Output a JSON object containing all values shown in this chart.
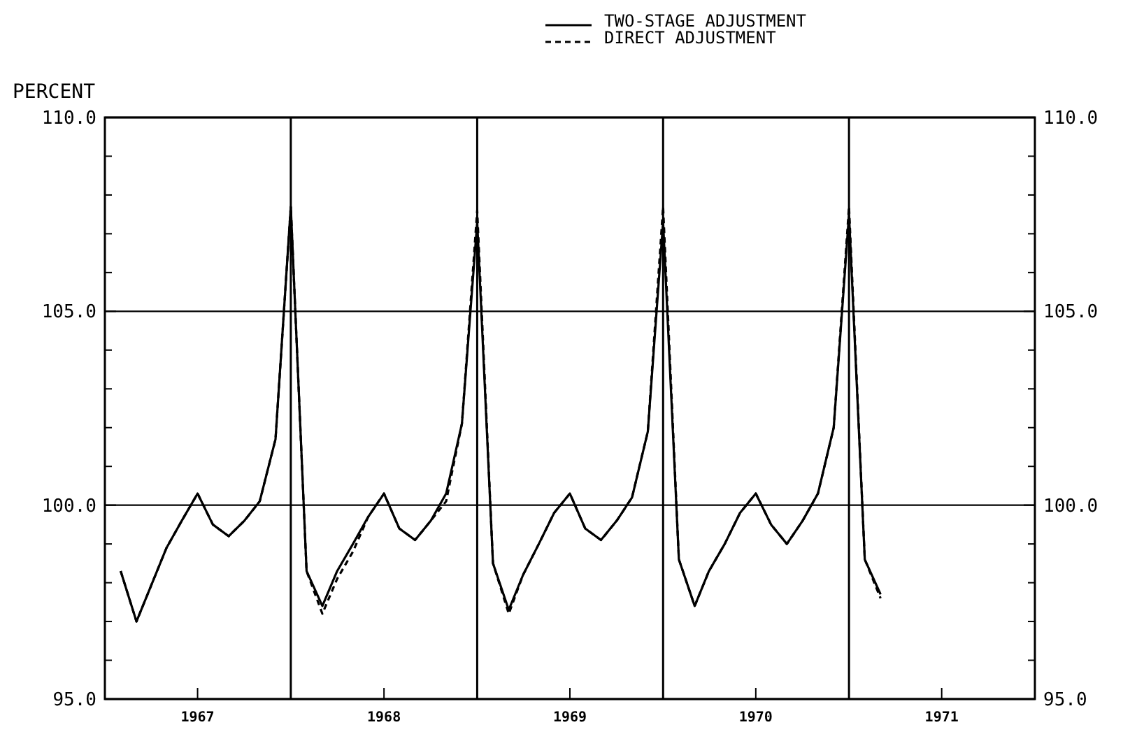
{
  "chart_data": {
    "type": "line",
    "ylabel": "PERCENT",
    "x": [
      "1967-01",
      "1967-02",
      "1967-03",
      "1967-04",
      "1967-05",
      "1967-06",
      "1967-07",
      "1967-08",
      "1967-09",
      "1967-10",
      "1967-11",
      "1967-12",
      "1968-01",
      "1968-02",
      "1968-03",
      "1968-04",
      "1968-05",
      "1968-06",
      "1968-07",
      "1968-08",
      "1968-09",
      "1968-10",
      "1968-11",
      "1968-12",
      "1969-01",
      "1969-02",
      "1969-03",
      "1969-04",
      "1969-05",
      "1969-06",
      "1969-07",
      "1969-08",
      "1969-09",
      "1969-10",
      "1969-11",
      "1969-12",
      "1970-01",
      "1970-02",
      "1970-03",
      "1970-04",
      "1970-05",
      "1970-06",
      "1970-07",
      "1970-08",
      "1970-09",
      "1970-10",
      "1970-11",
      "1970-12",
      "1971-01",
      "1971-02"
    ],
    "series": [
      {
        "name": "TWO-STAGE ADJUSTMENT",
        "color": "#000000",
        "line_style": "solid",
        "values": [
          98.3,
          97.0,
          97.9,
          98.9,
          99.6,
          100.3,
          99.5,
          99.2,
          99.6,
          100.1,
          101.7,
          107.7,
          98.3,
          97.4,
          98.3,
          99.0,
          99.7,
          100.3,
          99.4,
          99.1,
          99.6,
          100.3,
          102.1,
          107.3,
          98.5,
          97.3,
          98.2,
          99.0,
          99.8,
          100.3,
          99.4,
          99.1,
          99.6,
          100.2,
          101.9,
          107.3,
          98.6,
          97.4,
          98.3,
          99.0,
          99.8,
          100.3,
          99.5,
          99.0,
          99.6,
          100.3,
          102.0,
          107.5,
          98.6,
          97.7
        ]
      },
      {
        "name": "DIRECT ADJUSTMENT",
        "color": "#000000",
        "line_style": "dashed",
        "values": [
          98.3,
          97.0,
          97.9,
          98.9,
          99.6,
          100.3,
          99.5,
          99.2,
          99.6,
          100.1,
          101.7,
          107.7,
          98.3,
          97.2,
          98.1,
          98.8,
          99.7,
          100.3,
          99.4,
          99.1,
          99.6,
          100.1,
          102.1,
          107.6,
          98.5,
          97.2,
          98.2,
          99.0,
          99.8,
          100.3,
          99.4,
          99.1,
          99.6,
          100.2,
          101.9,
          107.7,
          98.6,
          97.4,
          98.3,
          99.0,
          99.8,
          100.3,
          99.5,
          99.0,
          99.6,
          100.3,
          102.0,
          107.7,
          98.6,
          97.6
        ]
      }
    ],
    "xlim": [
      "1966-12",
      "1971-12"
    ],
    "xticks": [
      {
        "value": "1967-06",
        "label": "1967"
      },
      {
        "value": "1968-06",
        "label": "1968"
      },
      {
        "value": "1969-06",
        "label": "1969"
      },
      {
        "value": "1970-06",
        "label": "1970"
      },
      {
        "value": "1971-06",
        "label": "1971"
      }
    ],
    "ylim": [
      95,
      110
    ],
    "yticks": [
      {
        "value": 95,
        "label": "95.0"
      },
      {
        "value": 96,
        "label": null
      },
      {
        "value": 97,
        "label": null
      },
      {
        "value": 98,
        "label": null
      },
      {
        "value": 99,
        "label": null
      },
      {
        "value": 100,
        "label": "100.0"
      },
      {
        "value": 101,
        "label": null
      },
      {
        "value": 102,
        "label": null
      },
      {
        "value": 103,
        "label": null
      },
      {
        "value": 104,
        "label": null
      },
      {
        "value": 105,
        "label": "105.0"
      },
      {
        "value": 106,
        "label": null
      },
      {
        "value": 107,
        "label": null
      },
      {
        "value": 108,
        "label": null
      },
      {
        "value": 109,
        "label": null
      },
      {
        "value": 110,
        "label": "110.0"
      }
    ],
    "y2lim": [
      95,
      110
    ],
    "y2ticks": [
      {
        "value": 95,
        "label": "95.0"
      },
      {
        "value": 100,
        "label": "100.0"
      },
      {
        "value": 105,
        "label": "105.0"
      },
      {
        "value": 110,
        "label": "110.0"
      }
    ],
    "ref_lines": [
      {
        "axis": "x",
        "value": "1967-12"
      },
      {
        "axis": "x",
        "value": "1968-12"
      },
      {
        "axis": "x",
        "value": "1969-12"
      },
      {
        "axis": "x",
        "value": "1970-12"
      }
    ],
    "grid": "y",
    "legend": "top",
    "marker": "none"
  }
}
